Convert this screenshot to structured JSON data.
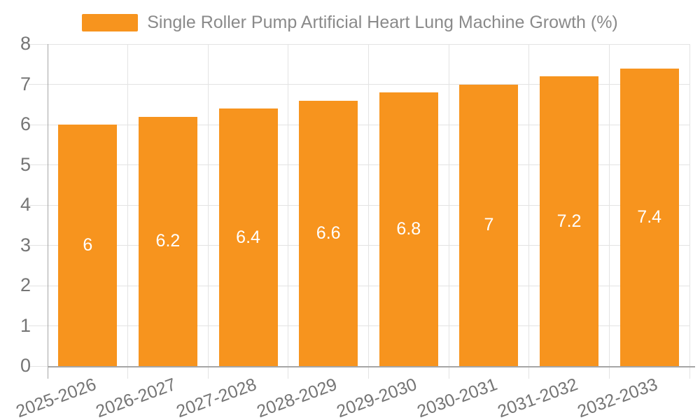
{
  "chart_data": {
    "type": "bar",
    "legend": {
      "label": "Single Roller Pump Artificial Heart Lung Machine Growth (%)",
      "position": "top"
    },
    "categories": [
      "2025-2026",
      "2026-2027",
      "2027-2028",
      "2028-2029",
      "2029-2030",
      "2030-2031",
      "2031-2032",
      "2032-2033"
    ],
    "values": [
      6,
      6.2,
      6.4,
      6.6,
      6.8,
      7,
      7.2,
      7.4
    ],
    "value_labels": [
      "6",
      "6.2",
      "6.4",
      "6.6",
      "6.8",
      "7",
      "7.2",
      "7.4"
    ],
    "xlabel": "",
    "ylabel": "",
    "ylim": [
      0,
      8
    ],
    "yticks": [
      "0",
      "1",
      "2",
      "3",
      "4",
      "5",
      "6",
      "7",
      "8"
    ],
    "grid": "on",
    "x_label_rotation_deg": -20,
    "colors": {
      "bar": "#F7941E",
      "grid": "#E3E3E3",
      "axis": "#A6A6A6",
      "tick_text": "#757575",
      "legend_text": "#8A8A8A",
      "bar_label": "#FFFFFF",
      "background": "#FFFFFF"
    }
  }
}
